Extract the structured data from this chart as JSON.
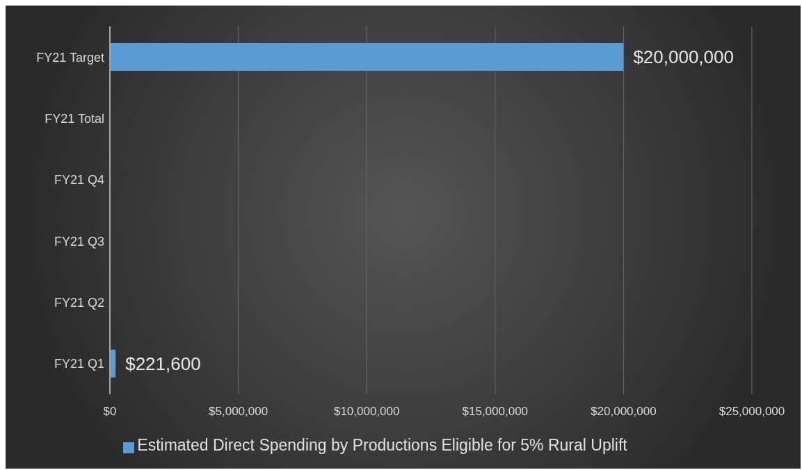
{
  "chart_data": {
    "type": "bar",
    "orientation": "horizontal",
    "categories": [
      "FY21 Target",
      "FY21 Total",
      "FY21 Q4",
      "FY21 Q3",
      "FY21 Q2",
      "FY21 Q1"
    ],
    "series": [
      {
        "name": "Estimated Direct Spending by Productions Eligible for 5% Rural Uplift",
        "color": "#5b9bd5",
        "values": [
          20000000,
          null,
          null,
          null,
          null,
          221600
        ],
        "value_labels": [
          "$20,000,000",
          null,
          null,
          null,
          null,
          "$221,600"
        ]
      }
    ],
    "xlim": [
      0,
      25000000
    ],
    "xticks": [
      {
        "value": 0,
        "label": "$0"
      },
      {
        "value": 5000000,
        "label": "$5,000,000"
      },
      {
        "value": 10000000,
        "label": "$10,000,000"
      },
      {
        "value": 15000000,
        "label": "$15,000,000"
      },
      {
        "value": 20000000,
        "label": "$20,000,000"
      },
      {
        "value": 25000000,
        "label": "$25,000,000"
      }
    ],
    "grid": "x",
    "legend": "bottom"
  }
}
